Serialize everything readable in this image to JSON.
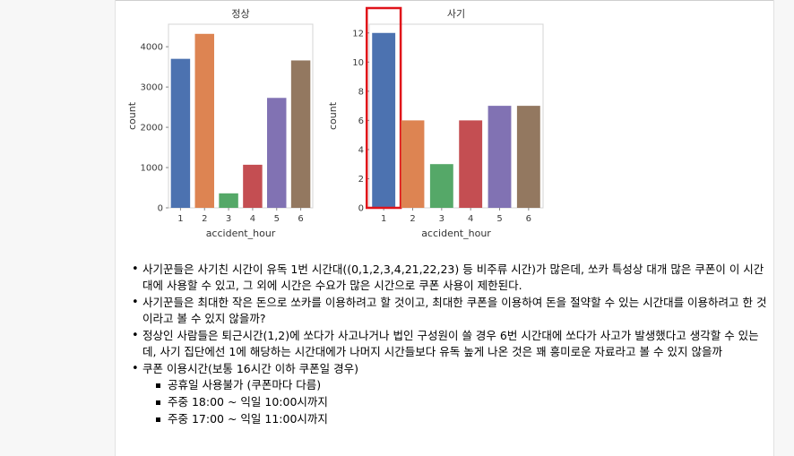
{
  "chart_data": [
    {
      "type": "bar",
      "title": "정상",
      "xlabel": "accident_hour",
      "ylabel": "count",
      "categories": [
        "1",
        "2",
        "3",
        "4",
        "5",
        "6"
      ],
      "values": [
        3700,
        4320,
        360,
        1070,
        2730,
        3660
      ],
      "ylim": [
        0,
        4560
      ],
      "yticks": [
        0,
        1000,
        2000,
        3000,
        4000
      ],
      "grid": false
    },
    {
      "type": "bar",
      "title": "사기",
      "xlabel": "accident_hour",
      "ylabel": "count",
      "categories": [
        "1",
        "2",
        "3",
        "4",
        "5",
        "6"
      ],
      "values": [
        12,
        6,
        3,
        6,
        7,
        7
      ],
      "ylim": [
        0,
        12.6
      ],
      "yticks": [
        0,
        2,
        4,
        6,
        8,
        10,
        12
      ],
      "grid": false,
      "highlight_category": "1"
    }
  ],
  "colors": {
    "bars": [
      "#4c72b0",
      "#dd8452",
      "#55a868",
      "#c44e52",
      "#8172b3",
      "#937860"
    ],
    "highlight": "#e0131a",
    "axis": "#d4d4d4",
    "tick_text": "#3a3a3a"
  },
  "notes": {
    "items": [
      "사기꾼들은 사기친 시간이 유독 1번 시간대((0,1,2,3,4,21,22,23) 등 비주류 시간)가 많은데, 쏘카 특성상 대개 많은 쿠폰이 이 시간대에 사용할 수 있고, 그 외에 시간은 수요가 많은 시간으로 쿠폰 사용이 제한된다.",
      "사기꾼들은 최대한 작은 돈으로 쏘카를 이용하려고 할 것이고, 최대한 쿠폰을 이용하여 돈을 절약할 수 있는 시간대를 이용하려고 한 것이라고 볼 수 있지 않을까?",
      "정상인 사람들은 퇴근시간(1,2)에 쏘다가 사고나거나 법인 구성원이 쓸 경우 6번 시간대에 쏘다가 사고가 발생했다고 생각할 수 있는데, 사기 집단에선 1에 해당하는 시간대에가 나머지 시간들보다 유독 높게 나온 것은 꽤 흥미로운 자료라고 볼 수 있지 않을까",
      "쿠폰 이용시간(보통 16시간 이하 쿠폰일 경우)"
    ],
    "subitems": [
      "공휴일 사용불가 (쿠폰마다 다름)",
      "주중 18:00 ~ 익일 10:00시까지",
      "주중 17:00 ~ 익일 11:00시까지"
    ]
  }
}
